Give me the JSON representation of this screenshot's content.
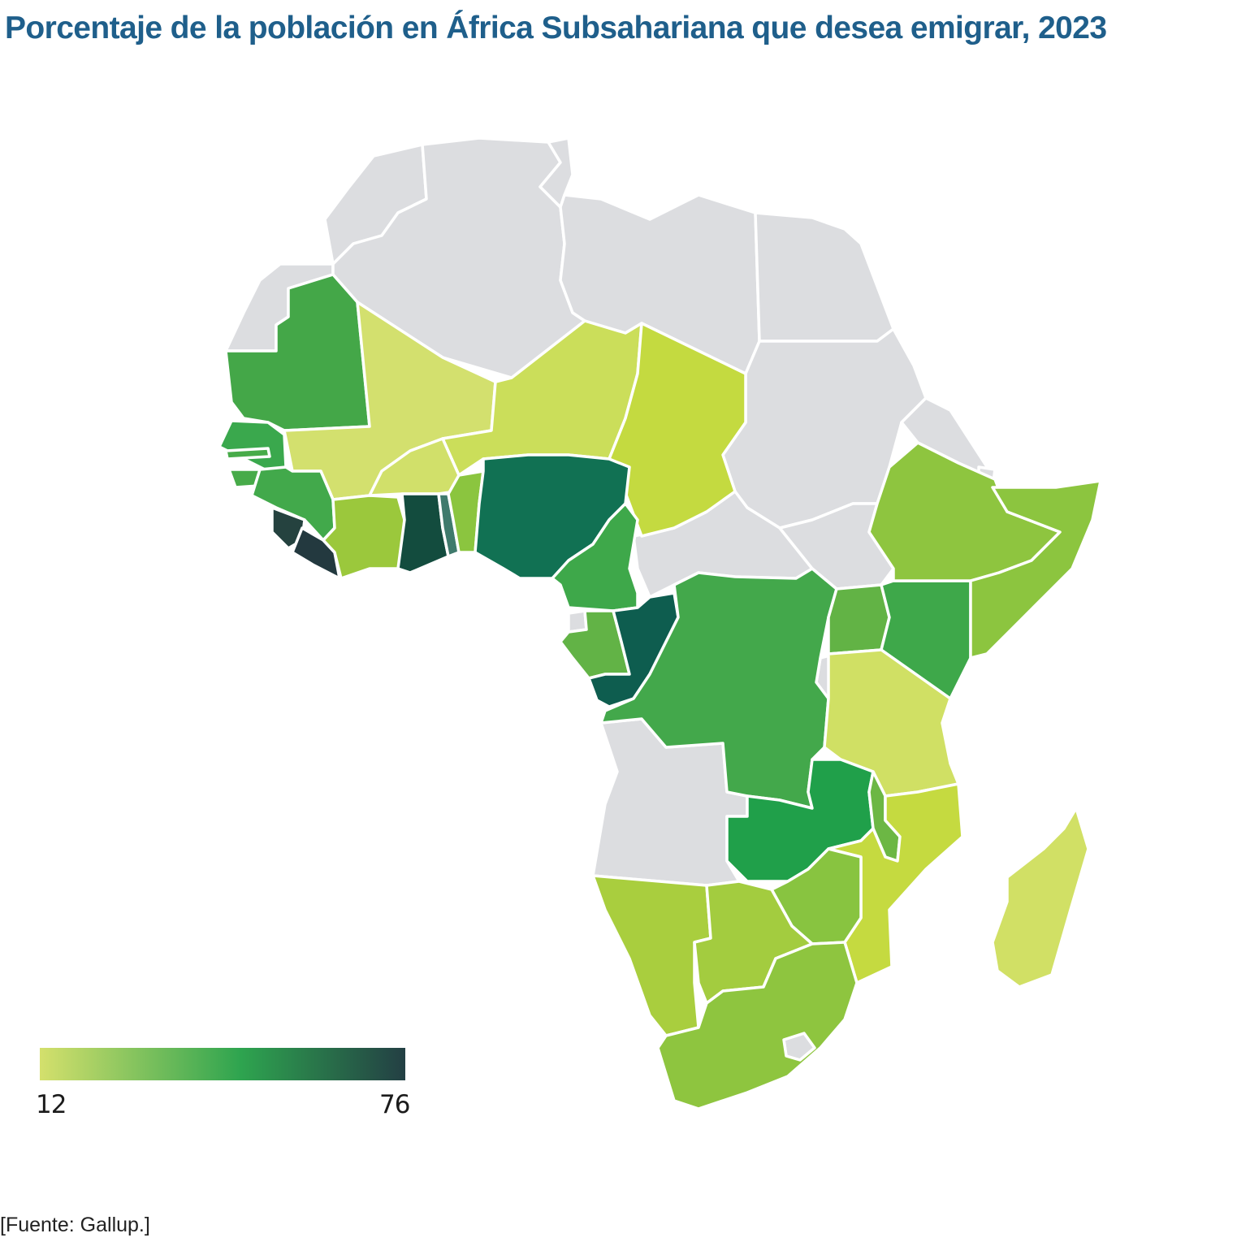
{
  "title": "Porcentaje de la población en África Subsahariana que desea emigrar, 2023",
  "source": "[Fuente: Gallup.]",
  "legend": {
    "min_label": "12",
    "max_label": "76",
    "min": 12,
    "max": 76,
    "color_low": "#d4e06c",
    "color_mid": "#2ea44f",
    "color_high": "#233f44"
  },
  "colors": {
    "no_data": "#dcdde0",
    "border": "#ffffff"
  },
  "countries": [
    {
      "id": "mauritania",
      "value": 42,
      "color": "#44a748"
    },
    {
      "id": "mali",
      "value": 14,
      "color": "#d3e06e"
    },
    {
      "id": "niger",
      "value": 17,
      "color": "#cbde5a"
    },
    {
      "id": "chad",
      "value": 19,
      "color": "#c4da40"
    },
    {
      "id": "senegal",
      "value": 46,
      "color": "#3aa84d"
    },
    {
      "id": "gambia",
      "value": 40,
      "color": "#47ab49"
    },
    {
      "id": "guinea-bissau",
      "value": 40,
      "color": "#47ab49"
    },
    {
      "id": "guinea",
      "value": 42,
      "color": "#42a94b"
    },
    {
      "id": "sierra-leone",
      "value": 72,
      "color": "#25423f"
    },
    {
      "id": "liberia",
      "value": 74,
      "color": "#23393f"
    },
    {
      "id": "cote-d-ivoire",
      "value": 25,
      "color": "#9bc83c"
    },
    {
      "id": "burkina-faso",
      "value": 14,
      "color": "#d1e06a"
    },
    {
      "id": "ghana",
      "value": 70,
      "color": "#134c3e"
    },
    {
      "id": "togo",
      "value": 62,
      "color": "#3f7a6c"
    },
    {
      "id": "benin",
      "value": 30,
      "color": "#8bc53f"
    },
    {
      "id": "nigeria",
      "value": 60,
      "color": "#117153"
    },
    {
      "id": "cameroon",
      "value": 42,
      "color": "#3ea84a"
    },
    {
      "id": "gabon",
      "value": 36,
      "color": "#62b346"
    },
    {
      "id": "congo",
      "value": 66,
      "color": "#0e5d4f"
    },
    {
      "id": "dr-congo",
      "value": 42,
      "color": "#43a84b"
    },
    {
      "id": "uganda",
      "value": 36,
      "color": "#62b345"
    },
    {
      "id": "kenya",
      "value": 44,
      "color": "#3ea84a"
    },
    {
      "id": "ethiopia",
      "value": 28,
      "color": "#8ec53f"
    },
    {
      "id": "somalia",
      "value": 28,
      "color": "#8cc53f"
    },
    {
      "id": "tanzania",
      "value": 15,
      "color": "#d0e064"
    },
    {
      "id": "zambia",
      "value": 48,
      "color": "#20a04a"
    },
    {
      "id": "malawi",
      "value": 32,
      "color": "#6cb744"
    },
    {
      "id": "mozambique",
      "value": 20,
      "color": "#c5da40"
    },
    {
      "id": "zimbabwe",
      "value": 28,
      "color": "#88c440"
    },
    {
      "id": "namibia",
      "value": 24,
      "color": "#a9ce3e"
    },
    {
      "id": "botswana",
      "value": 26,
      "color": "#a3cc3f"
    },
    {
      "id": "south-africa",
      "value": 28,
      "color": "#8ec53f"
    },
    {
      "id": "madagascar",
      "value": 15,
      "color": "#d1e065"
    }
  ]
}
